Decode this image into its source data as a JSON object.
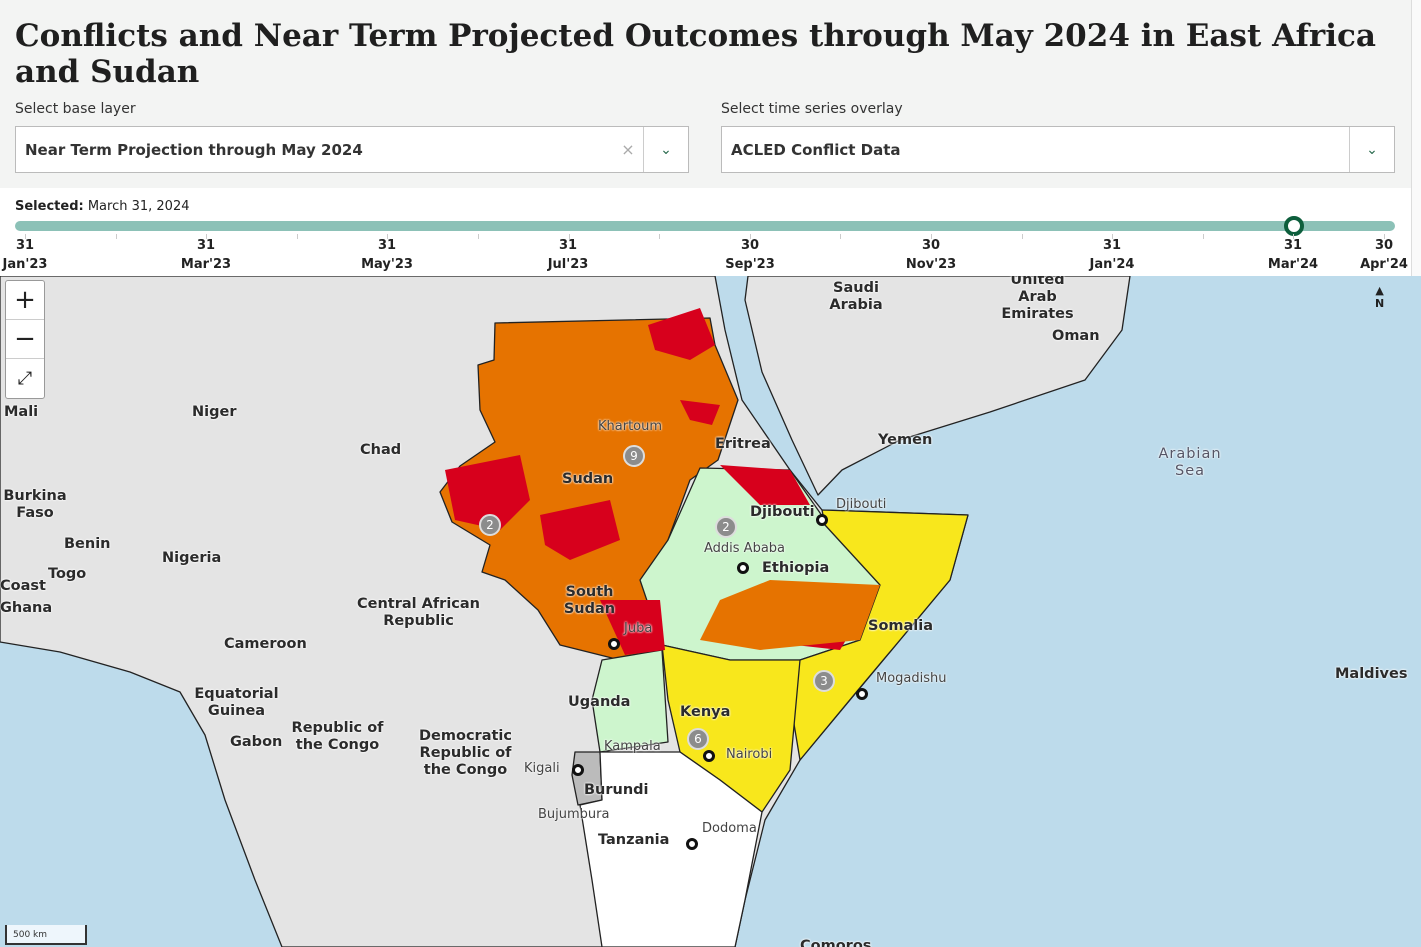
{
  "title": "Conflicts and Near Term Projected Outcomes through May 2024 in East Africa and Sudan",
  "base_layer": {
    "label": "Select base layer",
    "value": "Near Term Projection through May 2024",
    "clear": "×"
  },
  "overlay": {
    "label": "Select time series overlay",
    "value": "ACLED Conflict Data"
  },
  "timeline": {
    "selected_label": "Selected:",
    "selected_value": "March 31, 2024",
    "progress_fraction": 0.98,
    "ticks": [
      {
        "d": "31",
        "m": "Jan'23"
      },
      {
        "d": "31",
        "m": "Mar'23"
      },
      {
        "d": "31",
        "m": "May'23"
      },
      {
        "d": "31",
        "m": "Jul'23"
      },
      {
        "d": "30",
        "m": "Sep'23"
      },
      {
        "d": "30",
        "m": "Nov'23"
      },
      {
        "d": "31",
        "m": "Jan'24"
      },
      {
        "d": "31",
        "m": "Mar'24"
      },
      {
        "d": "30",
        "m": "Apr'24"
      }
    ]
  },
  "map": {
    "zoom_in": "+",
    "zoom_out": "−",
    "fullscreen": "⤢",
    "north": "N",
    "scale": "500 km",
    "colors": {
      "ocean": "#bddbeb",
      "land": "#e4e4e4",
      "emergency": "#d7001c",
      "crisis": "#e67300",
      "stressed": "#f8e71c",
      "minimal": "#cdf5cd",
      "none": "#ffffff"
    },
    "countries": [
      "Mali",
      "Niger",
      "Chad",
      "Sudan",
      "Eritrea",
      "Yemen",
      "Djibouti",
      "Ethiopia",
      "Somalia",
      "Saudi Arabia",
      "United Arab Emirates",
      "Oman",
      "Burkina Faso",
      "Benin",
      "Togo",
      "Nigeria",
      "Coast",
      "Ghana",
      "Central African Republic",
      "South Sudan",
      "Cameroon",
      "Equatorial Guinea",
      "Gabon",
      "Republic of the Congo",
      "Democratic Republic of the Congo",
      "Uganda",
      "Kenya",
      "Burundi",
      "Tanzania",
      "Maldives",
      "Comoros"
    ],
    "cities": [
      "Khartoum",
      "Djibouti",
      "Addis Ababa",
      "Juba",
      "Mogadishu",
      "Kampala",
      "Nairobi",
      "Kigali",
      "Bujumbura",
      "Dodoma"
    ],
    "seas": [
      "Arabian Sea"
    ],
    "clusters": [
      "9",
      "2",
      "2",
      "3",
      "6"
    ]
  }
}
